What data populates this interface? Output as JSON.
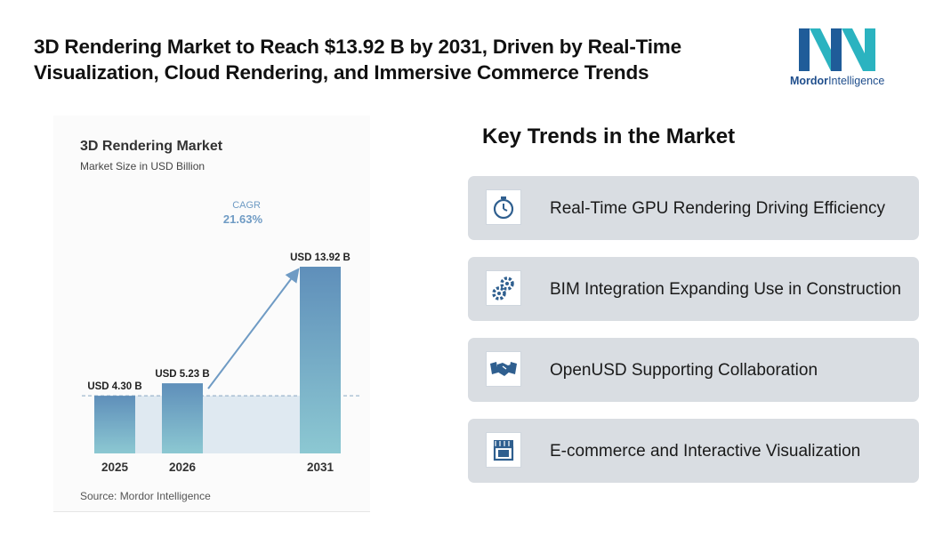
{
  "headline": "3D Rendering Market to Reach $13.92 B by 2031, Driven by Real-Time Visualization, Cloud Rendering, and Immersive Commerce Trends",
  "logo": {
    "word1": "Mordor",
    "word2": "Intelligence"
  },
  "chart_data": {
    "type": "bar",
    "title": "3D Rendering Market",
    "subtitle": "Market Size in USD Billion",
    "categories": [
      "2025",
      "2026",
      "2031"
    ],
    "values": [
      4.3,
      5.23,
      13.92
    ],
    "value_labels": [
      "USD 4.30 B",
      "USD 5.23 B",
      "USD 13.92 B"
    ],
    "cagr_label": "CAGR",
    "cagr_value": "21.63%",
    "source": "Source: Mordor Intelligence",
    "colors": {
      "bar_top": "#5f8fba",
      "bar_bottom": "#8cc8d2",
      "band": "#dfe9f1",
      "arrow": "#6f9bc4",
      "cagr_text": "#6f9bc4"
    }
  },
  "trends": {
    "title": "Key Trends in the Market",
    "items": [
      {
        "label": "Real-Time GPU Rendering Driving Efficiency",
        "icon": "stopwatch-icon"
      },
      {
        "label": "BIM Integration Expanding Use in Construction",
        "icon": "gears-icon"
      },
      {
        "label": "OpenUSD Supporting Collaboration",
        "icon": "handshake-icon"
      },
      {
        "label": "E-commerce and Interactive Visualization",
        "icon": "storefront-icon"
      }
    ],
    "icon_color": "#2f5f8f"
  }
}
